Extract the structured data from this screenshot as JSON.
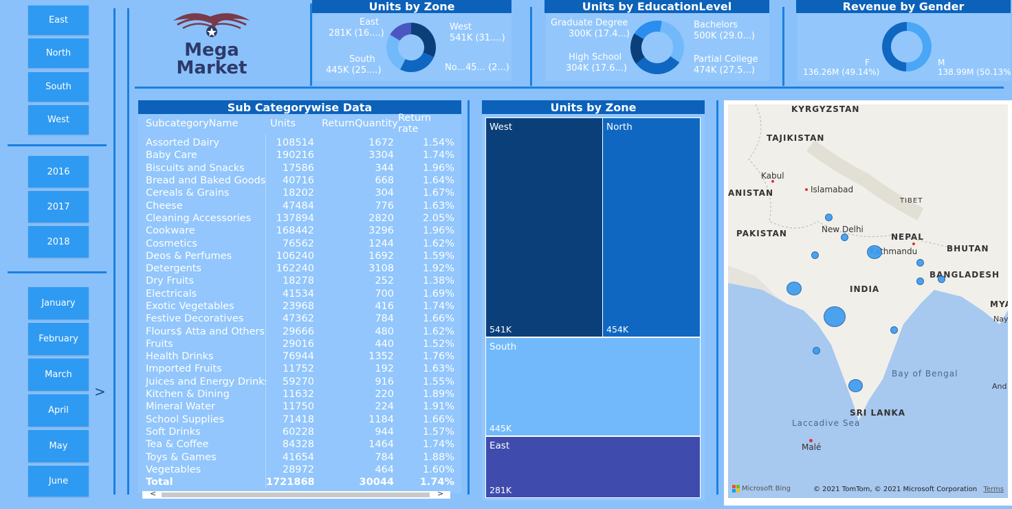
{
  "slicers": {
    "zones": [
      "East",
      "North",
      "South",
      "West"
    ],
    "years": [
      "2016",
      "2017",
      "2018"
    ],
    "months": [
      "January",
      "February",
      "March",
      "April",
      "May",
      "June"
    ],
    "next_arrow": ">"
  },
  "logo": {
    "line1": "Mega",
    "line2": "Market"
  },
  "units_by_zone_donut": {
    "title": "Units by Zone",
    "labels": [
      {
        "name": "East",
        "value": "281K (16....)"
      },
      {
        "name": "West",
        "value": "541K (31....)"
      },
      {
        "name": "South",
        "value": "445K (25....)"
      },
      {
        "name": "No...",
        "value": "45... (2...)"
      }
    ]
  },
  "units_by_education": {
    "title": "Units by EducationLevel",
    "labels": [
      {
        "name": "Graduate Degree",
        "value": "300K (17.4...)"
      },
      {
        "name": "Bachelors",
        "value": "500K (29.0...)"
      },
      {
        "name": "High School",
        "value": "304K (17.6...)"
      },
      {
        "name": "Partial College",
        "value": "474K (27.5...)"
      }
    ]
  },
  "revenue_by_gender": {
    "title": "Revenue by Gender",
    "labels": [
      {
        "name": "F",
        "value": "136.26M (49.14%)"
      },
      {
        "name": "M",
        "value": "138.99M (50.13%)"
      }
    ]
  },
  "subcategory_table": {
    "title": "Sub Categorywise Data",
    "columns": [
      "SubcategoryName",
      "Units",
      "ReturnQuantity",
      "Return rate"
    ],
    "rows": [
      [
        "Assorted Dairy",
        "108514",
        "1672",
        "1.54%"
      ],
      [
        "Baby Care",
        "190216",
        "3304",
        "1.74%"
      ],
      [
        "Biscuits and Snacks",
        "17586",
        "344",
        "1.96%"
      ],
      [
        "Bread and Baked Goods",
        "40716",
        "668",
        "1.64%"
      ],
      [
        "Cereals & Grains",
        "18202",
        "304",
        "1.67%"
      ],
      [
        "Cheese",
        "47484",
        "776",
        "1.63%"
      ],
      [
        "Cleaning Accessories",
        "137894",
        "2820",
        "2.05%"
      ],
      [
        "Cookware",
        "168442",
        "3296",
        "1.96%"
      ],
      [
        "Cosmetics",
        "76562",
        "1244",
        "1.62%"
      ],
      [
        "Deos & Perfumes",
        "106240",
        "1692",
        "1.59%"
      ],
      [
        "Detergents",
        "162240",
        "3108",
        "1.92%"
      ],
      [
        "Dry Fruits",
        "18278",
        "252",
        "1.38%"
      ],
      [
        "Electricals",
        "41534",
        "700",
        "1.69%"
      ],
      [
        "Exotic Vegetables",
        "23968",
        "416",
        "1.74%"
      ],
      [
        "Festive Decoratives",
        "47362",
        "784",
        "1.66%"
      ],
      [
        "Flours$ Atta and Others",
        "29666",
        "480",
        "1.62%"
      ],
      [
        "Fruits",
        "29016",
        "440",
        "1.52%"
      ],
      [
        "Health Drinks",
        "76944",
        "1352",
        "1.76%"
      ],
      [
        "Imported Fruits",
        "11752",
        "192",
        "1.63%"
      ],
      [
        "Juices and Energy Drinks",
        "59270",
        "916",
        "1.55%"
      ],
      [
        "Kitchen & Dining",
        "11632",
        "220",
        "1.89%"
      ],
      [
        "Mineral Water",
        "11750",
        "224",
        "1.91%"
      ],
      [
        "School Supplies",
        "71418",
        "1184",
        "1.66%"
      ],
      [
        "Soft Drinks",
        "60228",
        "944",
        "1.57%"
      ],
      [
        "Tea & Coffee",
        "84328",
        "1464",
        "1.74%"
      ],
      [
        "Toys & Games",
        "41654",
        "784",
        "1.88%"
      ],
      [
        "Vegetables",
        "28972",
        "464",
        "1.60%"
      ]
    ],
    "total": [
      "Total",
      "1721868",
      "30044",
      "1.74%"
    ],
    "scroll_left": "<",
    "scroll_right": ">"
  },
  "units_by_zone_treemap": {
    "title": "Units by Zone",
    "cells": [
      {
        "name": "West",
        "value": "541K"
      },
      {
        "name": "North",
        "value": "454K"
      },
      {
        "name": "South",
        "value": "445K"
      },
      {
        "name": "East",
        "value": "281K"
      }
    ]
  },
  "map": {
    "countries": [
      "KYRGYZSTAN",
      "TAJIKISTAN",
      "ANISTAN",
      "PAKISTAN",
      "TIBET",
      "NEPAL",
      "BHUTAN",
      "BANGLADESH",
      "INDIA",
      "MYA",
      "SRI LANKA"
    ],
    "cities": [
      "Kabul",
      "Islamabad",
      "New Delhi",
      "Kathmandu",
      "Nay",
      "And",
      "Malé"
    ],
    "water": [
      "Bay of Bengal",
      "Laccadive Sea"
    ],
    "brand": "Microsoft Bing",
    "copyright": "© 2021 TomTom, © 2021 Microsoft Corporation",
    "terms": "Terms"
  },
  "colors": {
    "background": "#8ac1fb",
    "slicer": "#2f9af2",
    "header": "#0c61b9",
    "west": "#0b3f7a",
    "north": "#0f67c2",
    "south": "#72b9fb",
    "east": "#3f4bad"
  },
  "chart_data": [
    {
      "type": "pie",
      "title": "Units by Zone",
      "categories": [
        "West",
        "South",
        "North",
        "East"
      ],
      "values": [
        541,
        445,
        454,
        281
      ],
      "unit": "K"
    },
    {
      "type": "pie",
      "title": "Units by EducationLevel",
      "categories": [
        "Bachelors",
        "Partial College",
        "High School",
        "Graduate Degree"
      ],
      "values": [
        500,
        474,
        304,
        300
      ],
      "unit": "K"
    },
    {
      "type": "pie",
      "title": "Revenue by Gender",
      "categories": [
        "M",
        "F"
      ],
      "values": [
        138.99,
        136.26
      ],
      "unit": "M"
    }
  ]
}
